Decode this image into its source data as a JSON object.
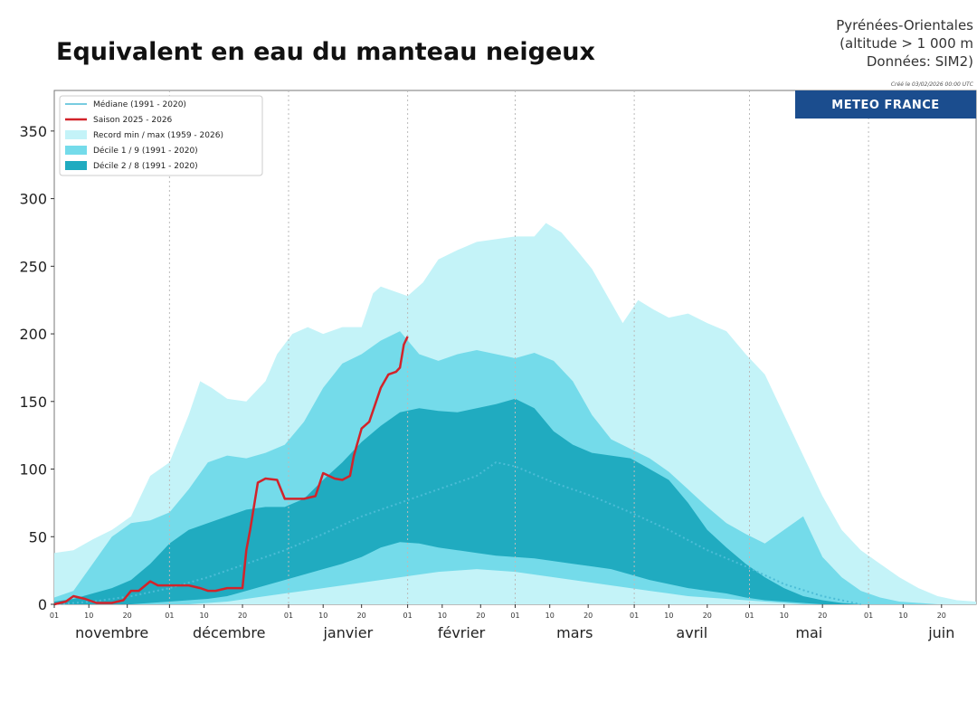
{
  "title": "Equivalent en eau du manteau neigeux",
  "region": {
    "line1": "Pyrénées-Orientales",
    "line2": "(altitude > 1 000 m",
    "line3": "Données: SIM2)"
  },
  "created": "Créé le 03/02/2026 00:00 UTC",
  "brand": "METEO FRANCE",
  "colors": {
    "record": "#c4f3f8",
    "decile19": "#74dbea",
    "decile28": "#20abc0",
    "median": "#4bbcd6",
    "season": "#d2232a",
    "brand_bg": "#1b4d8e"
  },
  "chart_data": {
    "type": "area",
    "x_unit": "day since 1 November",
    "ylim": [
      0,
      380
    ],
    "y_ticks": [
      0,
      50,
      100,
      150,
      200,
      250,
      300,
      350
    ],
    "months": [
      {
        "label": "novembre",
        "start": 0
      },
      {
        "label": "décembre",
        "start": 30
      },
      {
        "label": "janvier",
        "start": 61
      },
      {
        "label": "février",
        "start": 92
      },
      {
        "label": "mars",
        "start": 120
      },
      {
        "label": "avril",
        "start": 151
      },
      {
        "label": "mai",
        "start": 181
      },
      {
        "label": "juin",
        "start": 212
      }
    ],
    "month_day_labels": [
      "01",
      "10",
      "20"
    ],
    "x_max": 240,
    "legend": [
      {
        "label": "Médiane (1991 - 2020)",
        "kind": "line",
        "color": "#4bbcd6"
      },
      {
        "label": "Saison 2025 - 2026",
        "kind": "line",
        "color": "#d2232a"
      },
      {
        "label": "Record min / max (1959 - 2026)",
        "kind": "patch",
        "color": "#c4f3f8"
      },
      {
        "label": "Décile 1 / 9 (1991 - 2020)",
        "kind": "patch",
        "color": "#74dbea"
      },
      {
        "label": "Décile 2 / 8 (1991 - 2020)",
        "kind": "patch",
        "color": "#20abc0"
      }
    ],
    "series": [
      {
        "name": "Record min / max (1959 - 2026)",
        "role": "record",
        "x": [
          0,
          5,
          10,
          15,
          20,
          25,
          30,
          35,
          38,
          41,
          45,
          50,
          55,
          58,
          62,
          66,
          70,
          75,
          80,
          83,
          85,
          88,
          92,
          96,
          100,
          105,
          110,
          115,
          120,
          125,
          128,
          132,
          136,
          140,
          144,
          148,
          152,
          156,
          160,
          165,
          170,
          175,
          180,
          185,
          190,
          195,
          200,
          205,
          210,
          215,
          220,
          225,
          230,
          235,
          240
        ],
        "upper": [
          38,
          40,
          48,
          55,
          65,
          95,
          105,
          140,
          165,
          160,
          152,
          150,
          165,
          185,
          200,
          205,
          200,
          205,
          205,
          230,
          235,
          232,
          228,
          238,
          255,
          262,
          268,
          270,
          272,
          272,
          282,
          275,
          262,
          248,
          228,
          208,
          225,
          218,
          212,
          215,
          208,
          202,
          185,
          170,
          140,
          110,
          80,
          55,
          40,
          30,
          20,
          12,
          6,
          3,
          2
        ],
        "lower": [
          0,
          0,
          0,
          0,
          0,
          0,
          0,
          0,
          0,
          0,
          0,
          0,
          0,
          0,
          0,
          0,
          0,
          0,
          0,
          0,
          0,
          0,
          0,
          0,
          0,
          0,
          0,
          0,
          0,
          0,
          0,
          0,
          0,
          0,
          0,
          0,
          0,
          0,
          0,
          0,
          0,
          0,
          0,
          0,
          0,
          0,
          0,
          0,
          0,
          0,
          0,
          0,
          0,
          0,
          0
        ]
      },
      {
        "name": "Décile 1 / 9 (1991 - 2020)",
        "role": "decile19",
        "x": [
          0,
          5,
          10,
          15,
          20,
          25,
          30,
          35,
          40,
          45,
          50,
          55,
          60,
          65,
          70,
          75,
          80,
          85,
          90,
          95,
          100,
          105,
          110,
          115,
          120,
          125,
          130,
          135,
          140,
          145,
          150,
          155,
          160,
          165,
          170,
          175,
          180,
          185,
          190,
          195,
          200,
          205,
          210,
          215,
          220,
          225,
          230
        ],
        "upper": [
          5,
          10,
          30,
          50,
          60,
          62,
          68,
          85,
          105,
          110,
          108,
          112,
          118,
          135,
          160,
          178,
          185,
          195,
          202,
          185,
          180,
          185,
          188,
          185,
          182,
          186,
          180,
          165,
          140,
          122,
          115,
          108,
          98,
          85,
          72,
          60,
          52,
          45,
          55,
          65,
          35,
          20,
          10,
          5,
          2,
          1,
          0
        ],
        "lower": [
          0,
          0,
          0,
          0,
          0,
          0,
          0,
          0,
          1,
          2,
          4,
          6,
          8,
          10,
          12,
          14,
          16,
          18,
          20,
          22,
          24,
          25,
          26,
          25,
          24,
          22,
          20,
          18,
          16,
          14,
          12,
          10,
          8,
          6,
          5,
          4,
          3,
          2,
          1,
          0,
          0,
          0,
          0,
          0,
          0,
          0,
          0
        ]
      },
      {
        "name": "Décile 2 / 8 (1991 - 2020)",
        "role": "decile28",
        "x": [
          0,
          5,
          10,
          15,
          20,
          25,
          30,
          35,
          40,
          45,
          50,
          55,
          60,
          65,
          70,
          75,
          80,
          85,
          90,
          95,
          100,
          105,
          110,
          115,
          120,
          125,
          130,
          135,
          140,
          145,
          150,
          155,
          160,
          165,
          170,
          175,
          180,
          185,
          190,
          195,
          200,
          205,
          210
        ],
        "upper": [
          2,
          4,
          8,
          12,
          18,
          30,
          45,
          55,
          60,
          65,
          70,
          72,
          72,
          78,
          92,
          105,
          120,
          132,
          142,
          145,
          143,
          142,
          145,
          148,
          152,
          145,
          128,
          118,
          112,
          110,
          108,
          100,
          92,
          75,
          55,
          42,
          30,
          20,
          12,
          6,
          3,
          1,
          0
        ],
        "lower": [
          0,
          0,
          0,
          0,
          0,
          1,
          2,
          3,
          4,
          6,
          10,
          14,
          18,
          22,
          26,
          30,
          35,
          42,
          46,
          45,
          42,
          40,
          38,
          36,
          35,
          34,
          32,
          30,
          28,
          26,
          22,
          18,
          15,
          12,
          10,
          8,
          5,
          3,
          2,
          1,
          0,
          0,
          0
        ]
      },
      {
        "name": "Médiane (1991 - 2020)",
        "role": "median",
        "x": [
          0,
          10,
          20,
          30,
          40,
          50,
          60,
          70,
          80,
          90,
          100,
          110,
          115,
          120,
          130,
          140,
          150,
          160,
          170,
          180,
          190,
          200,
          210
        ],
        "values": [
          0,
          2,
          6,
          12,
          20,
          30,
          40,
          52,
          65,
          75,
          85,
          95,
          105,
          102,
          90,
          80,
          68,
          55,
          40,
          28,
          15,
          6,
          0
        ]
      },
      {
        "name": "Saison 2025 - 2026",
        "role": "season",
        "x": [
          0,
          3,
          5,
          8,
          11,
          15,
          18,
          20,
          22,
          25,
          27,
          30,
          35,
          38,
          40,
          42,
          45,
          47,
          49,
          50,
          51,
          53,
          55,
          58,
          60,
          62,
          65,
          68,
          70,
          73,
          75,
          77,
          78,
          80,
          82,
          85,
          87,
          89,
          90,
          91,
          92
        ],
        "values": [
          0,
          2,
          6,
          4,
          1,
          1,
          3,
          10,
          10,
          17,
          14,
          14,
          14,
          12,
          10,
          10,
          12,
          12,
          12,
          40,
          55,
          90,
          93,
          92,
          78,
          78,
          78,
          80,
          97,
          93,
          92,
          95,
          110,
          130,
          135,
          160,
          170,
          172,
          175,
          192,
          198
        ]
      }
    ]
  }
}
